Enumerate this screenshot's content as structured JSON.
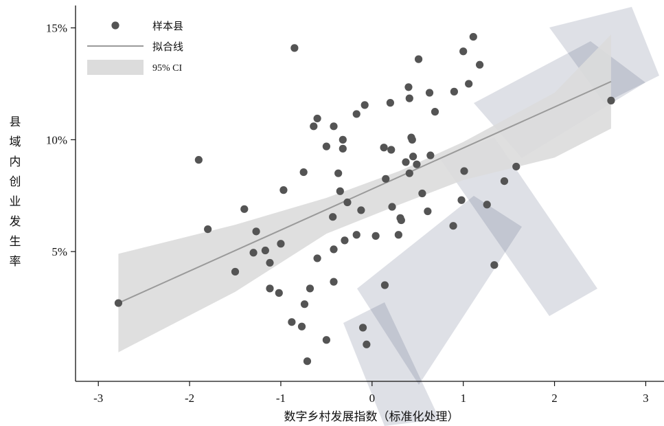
{
  "chart_data": {
    "type": "scatter",
    "xlabel": "数字乡村发展指数（标准化处理）",
    "ylabel": "县域内创业发生率",
    "xlim": [
      -3.25,
      3.2
    ],
    "ylim": [
      -0.8,
      16
    ],
    "x_ticks": [
      -3,
      -2,
      -1,
      0,
      1,
      2,
      3
    ],
    "x_tick_labels": [
      "-3",
      "-2",
      "-1",
      "0",
      "1",
      "2",
      "3"
    ],
    "y_ticks": [
      5,
      10,
      15
    ],
    "y_tick_labels": [
      "5%",
      "10%",
      "15%"
    ],
    "legend": {
      "position": "top-left",
      "entries": [
        "样本县",
        "拟合线",
        "95% CI"
      ]
    },
    "fit_line": {
      "x": [
        -2.78,
        2.62
      ],
      "y": [
        2.7,
        12.6
      ]
    },
    "ci_band": {
      "x": [
        -2.78,
        -1.5,
        -0.5,
        0.3,
        1.0,
        2.0,
        2.62
      ],
      "upper": [
        4.9,
        6.2,
        7.4,
        8.6,
        9.9,
        12.1,
        14.7
      ],
      "lower": [
        0.5,
        3.2,
        5.8,
        7.1,
        8.2,
        9.2,
        10.5
      ]
    },
    "series": [
      {
        "points": [
          [
            -2.78,
            2.7
          ],
          [
            -1.9,
            9.1
          ],
          [
            -1.8,
            6.0
          ],
          [
            -1.5,
            4.1
          ],
          [
            -1.4,
            6.9
          ],
          [
            -1.3,
            4.95
          ],
          [
            -1.27,
            5.9
          ],
          [
            -1.17,
            5.05
          ],
          [
            -1.12,
            4.5
          ],
          [
            -1.12,
            3.35
          ],
          [
            -1.02,
            3.15
          ],
          [
            -1.0,
            5.35
          ],
          [
            -0.97,
            7.75
          ],
          [
            -0.88,
            1.85
          ],
          [
            -0.85,
            14.1
          ],
          [
            -0.77,
            1.65
          ],
          [
            -0.75,
            8.55
          ],
          [
            -0.74,
            2.65
          ],
          [
            -0.71,
            0.1
          ],
          [
            -0.68,
            3.35
          ],
          [
            -0.64,
            10.6
          ],
          [
            -0.6,
            10.95
          ],
          [
            -0.6,
            4.7
          ],
          [
            -0.5,
            9.7
          ],
          [
            -0.5,
            1.05
          ],
          [
            -0.43,
            6.55
          ],
          [
            -0.42,
            3.65
          ],
          [
            -0.42,
            5.1
          ],
          [
            -0.42,
            10.6
          ],
          [
            -0.37,
            8.5
          ],
          [
            -0.35,
            7.7
          ],
          [
            -0.32,
            10.0
          ],
          [
            -0.32,
            9.6
          ],
          [
            -0.3,
            5.5
          ],
          [
            -0.27,
            7.2
          ],
          [
            -0.17,
            5.75
          ],
          [
            -0.17,
            11.15
          ],
          [
            -0.12,
            6.85
          ],
          [
            -0.1,
            1.6
          ],
          [
            -0.08,
            11.55
          ],
          [
            -0.06,
            0.85
          ],
          [
            0.04,
            5.7
          ],
          [
            0.13,
            9.65
          ],
          [
            0.14,
            3.5
          ],
          [
            0.15,
            8.25
          ],
          [
            0.2,
            11.65
          ],
          [
            0.21,
            9.55
          ],
          [
            0.22,
            7.0
          ],
          [
            0.29,
            5.75
          ],
          [
            0.31,
            6.5
          ],
          [
            0.32,
            6.4
          ],
          [
            0.37,
            9.0
          ],
          [
            0.4,
            12.35
          ],
          [
            0.41,
            11.85
          ],
          [
            0.41,
            8.5
          ],
          [
            0.43,
            10.1
          ],
          [
            0.44,
            10.0
          ],
          [
            0.45,
            9.25
          ],
          [
            0.49,
            8.9
          ],
          [
            0.51,
            13.6
          ],
          [
            0.55,
            7.6
          ],
          [
            0.61,
            6.8
          ],
          [
            0.63,
            12.1
          ],
          [
            0.64,
            9.3
          ],
          [
            0.69,
            11.25
          ],
          [
            0.89,
            6.15
          ],
          [
            0.9,
            12.15
          ],
          [
            0.98,
            7.3
          ],
          [
            1.0,
            13.95
          ],
          [
            1.01,
            8.6
          ],
          [
            1.06,
            12.5
          ],
          [
            1.11,
            14.6
          ],
          [
            1.18,
            13.35
          ],
          [
            1.26,
            7.1
          ],
          [
            1.34,
            4.4
          ],
          [
            1.45,
            8.15
          ],
          [
            1.58,
            8.8
          ],
          [
            2.62,
            11.75
          ]
        ]
      }
    ]
  },
  "colors": {
    "point": "#545454",
    "fit_line": "#9a9a9a",
    "ci_fill": "#dcdcdc",
    "axis": "#111111",
    "watermark": "#2f3f66"
  }
}
